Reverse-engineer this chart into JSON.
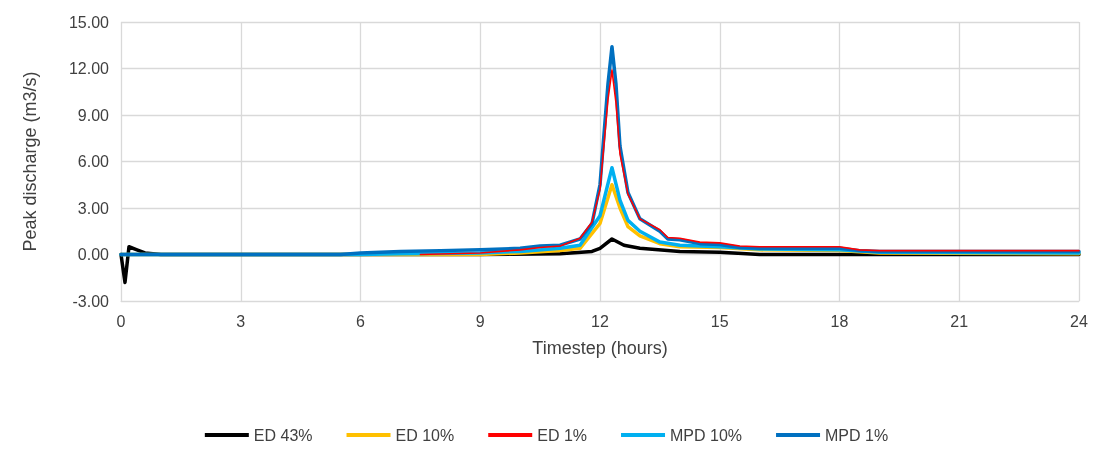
{
  "chart_data": {
    "type": "line",
    "xlabel": "Timestep (hours)",
    "ylabel": "Peak discharge (m3/s)",
    "xlim": [
      0,
      24
    ],
    "xticks": [
      0,
      3,
      6,
      9,
      12,
      15,
      18,
      21,
      24
    ],
    "ylim": [
      -3,
      15
    ],
    "yticks": [
      {
        "value": -3,
        "label": "-3.00"
      },
      {
        "value": 0,
        "label": "0.00"
      },
      {
        "value": 3,
        "label": "3.00"
      },
      {
        "value": 6,
        "label": "6.00"
      },
      {
        "value": 9,
        "label": "9.00"
      },
      {
        "value": 12,
        "label": "12.00"
      },
      {
        "value": 15,
        "label": "15.00"
      }
    ],
    "grid": true,
    "legend": "bottom",
    "marker": "none",
    "line_style": "solid",
    "series": [
      {
        "name": "ED 43%",
        "color": "#000000",
        "x": [
          0,
          0.1,
          0.2,
          0.4,
          0.6,
          1,
          9,
          11,
          11.8,
          12,
          12.3,
          12.6,
          13,
          14,
          15,
          16,
          24
        ],
        "values": [
          0,
          -1.8,
          0.5,
          0.3,
          0.1,
          0,
          0,
          0.05,
          0.2,
          0.4,
          1.0,
          0.6,
          0.4,
          0.2,
          0.15,
          0,
          0
        ]
      },
      {
        "name": "ED 10%",
        "color": "#ffc000",
        "x": [
          0,
          9,
          10,
          11,
          11.5,
          12,
          12.3,
          12.5,
          12.7,
          13,
          13.5,
          14,
          15,
          16,
          18,
          19,
          24
        ],
        "values": [
          0,
          0,
          0.1,
          0.25,
          0.4,
          2,
          4.5,
          3,
          1.8,
          1.2,
          0.7,
          0.5,
          0.45,
          0.3,
          0.25,
          0.1,
          0.05
        ]
      },
      {
        "name": "ED 1%",
        "color": "#ff0000",
        "x": [
          7.5,
          9,
          10,
          10.5,
          11,
          11.5,
          11.8,
          12,
          12.2,
          12.3,
          12.4,
          12.5,
          12.7,
          13,
          13.5,
          13.7,
          14,
          14.5,
          15,
          15.5,
          16,
          18,
          18.5,
          19,
          24
        ],
        "values": [
          0,
          0.1,
          0.3,
          0.45,
          0.55,
          1.05,
          2.1,
          4.2,
          10,
          11.9,
          9.8,
          6.5,
          3.9,
          2.3,
          1.6,
          1.1,
          1.05,
          0.8,
          0.75,
          0.55,
          0.5,
          0.5,
          0.3,
          0.25,
          0.25
        ]
      },
      {
        "name": "MPD 10%",
        "color": "#00b0f0",
        "x": [
          0,
          6,
          7,
          9,
          10,
          11,
          11.5,
          12,
          12.3,
          12.5,
          12.7,
          13,
          13.5,
          14,
          15,
          16,
          18,
          19,
          24
        ],
        "values": [
          0,
          0,
          0.05,
          0.1,
          0.2,
          0.4,
          0.6,
          2.5,
          5.6,
          3.5,
          2.2,
          1.5,
          0.8,
          0.6,
          0.5,
          0.35,
          0.3,
          0.15,
          0.1
        ]
      },
      {
        "name": "MPD 1%",
        "color": "#0070c0",
        "x": [
          0,
          5.5,
          6,
          7,
          8,
          9,
          10,
          10.5,
          11,
          11.5,
          11.8,
          12,
          12.2,
          12.3,
          12.4,
          12.5,
          12.7,
          13,
          13.5,
          13.7,
          14,
          14.5,
          15,
          15.5,
          16,
          18,
          18.5,
          19,
          24
        ],
        "values": [
          0,
          0,
          0.1,
          0.2,
          0.25,
          0.3,
          0.4,
          0.55,
          0.6,
          1.0,
          2.0,
          4.5,
          11,
          13.4,
          11,
          7,
          4,
          2.3,
          1.5,
          1.0,
          0.95,
          0.7,
          0.65,
          0.45,
          0.4,
          0.4,
          0.25,
          0.2,
          0.2
        ]
      }
    ]
  }
}
